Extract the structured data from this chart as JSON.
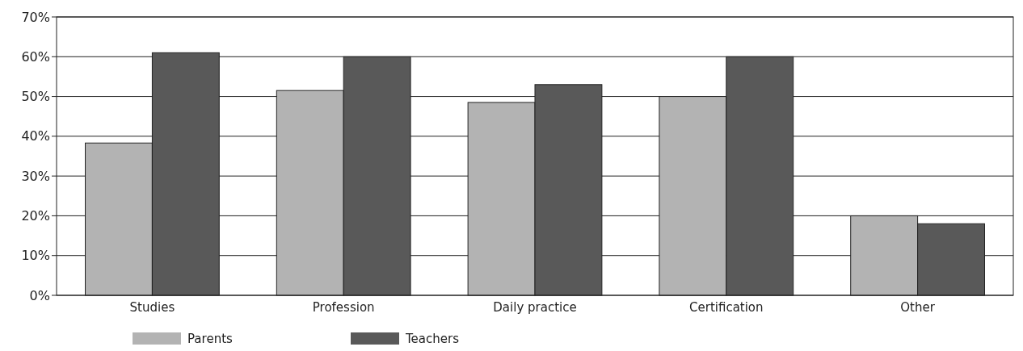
{
  "chart_data": {
    "type": "bar",
    "categories": [
      "Studies",
      "Profession",
      "Daily practice",
      "Certification",
      "Other"
    ],
    "series": [
      {
        "name": "Parents",
        "color": "#b3b3b3",
        "values": [
          38.3,
          51.5,
          48.5,
          50,
          20
        ]
      },
      {
        "name": "Teachers",
        "color": "#595959",
        "values": [
          61,
          60,
          53,
          60,
          18
        ]
      }
    ],
    "ylim": [
      0,
      70
    ],
    "yticks": [
      {
        "value": 0,
        "label": "0%"
      },
      {
        "value": 10,
        "label": "10%"
      },
      {
        "value": 20,
        "label": "20%"
      },
      {
        "value": 30,
        "label": "30%"
      },
      {
        "value": 40,
        "label": "40%"
      },
      {
        "value": 50,
        "label": "50%"
      },
      {
        "value": 60,
        "label": "60%"
      },
      {
        "value": 70,
        "label": "70%"
      }
    ],
    "grid": "y",
    "legend": "bottom"
  }
}
